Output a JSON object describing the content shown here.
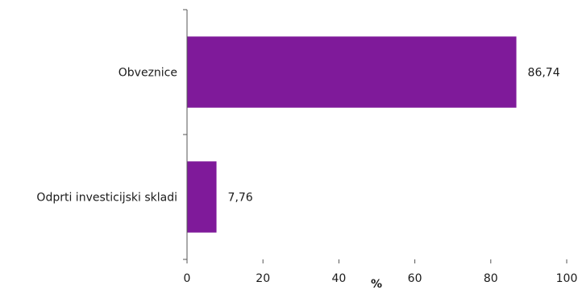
{
  "chart_data": {
    "type": "bar",
    "orientation": "horizontal",
    "categories": [
      "Obveznice",
      "Odprti investicijski skladi"
    ],
    "values": [
      86.74,
      7.76
    ],
    "value_labels": [
      "86,74",
      "7,76"
    ],
    "xlabel": "%",
    "xlim": [
      0,
      100
    ],
    "xticks": [
      0,
      20,
      40,
      60,
      80,
      100
    ],
    "bar_color": "#7f1a9a",
    "grid": false,
    "legend": "none"
  }
}
